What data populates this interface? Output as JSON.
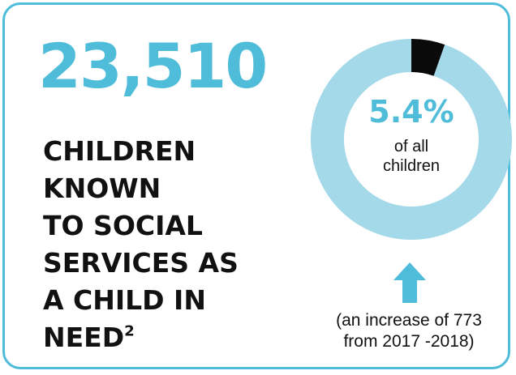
{
  "stat": {
    "number": "23,510",
    "headline_lines": [
      "CHILDREN",
      "KNOWN",
      "TO SOCIAL",
      "SERVICES AS",
      "A CHILD IN",
      "NEED"
    ],
    "footnote_marker": "2"
  },
  "chart_data": {
    "type": "pie",
    "values": [
      5.4,
      94.6
    ],
    "center_value": "5.4%",
    "center_caption_lines": [
      "of all",
      "children"
    ],
    "colors": [
      "#0a0a0a",
      "#a3d9e8"
    ]
  },
  "increase": {
    "icon": "up-arrow-icon",
    "note_lines": [
      "(an increase of 773",
      "from 2017 -2018)"
    ]
  },
  "colors": {
    "accent": "#4fbdd9",
    "donut_track": "#a3d9e8",
    "donut_highlight": "#0a0a0a",
    "text": "#111111"
  }
}
